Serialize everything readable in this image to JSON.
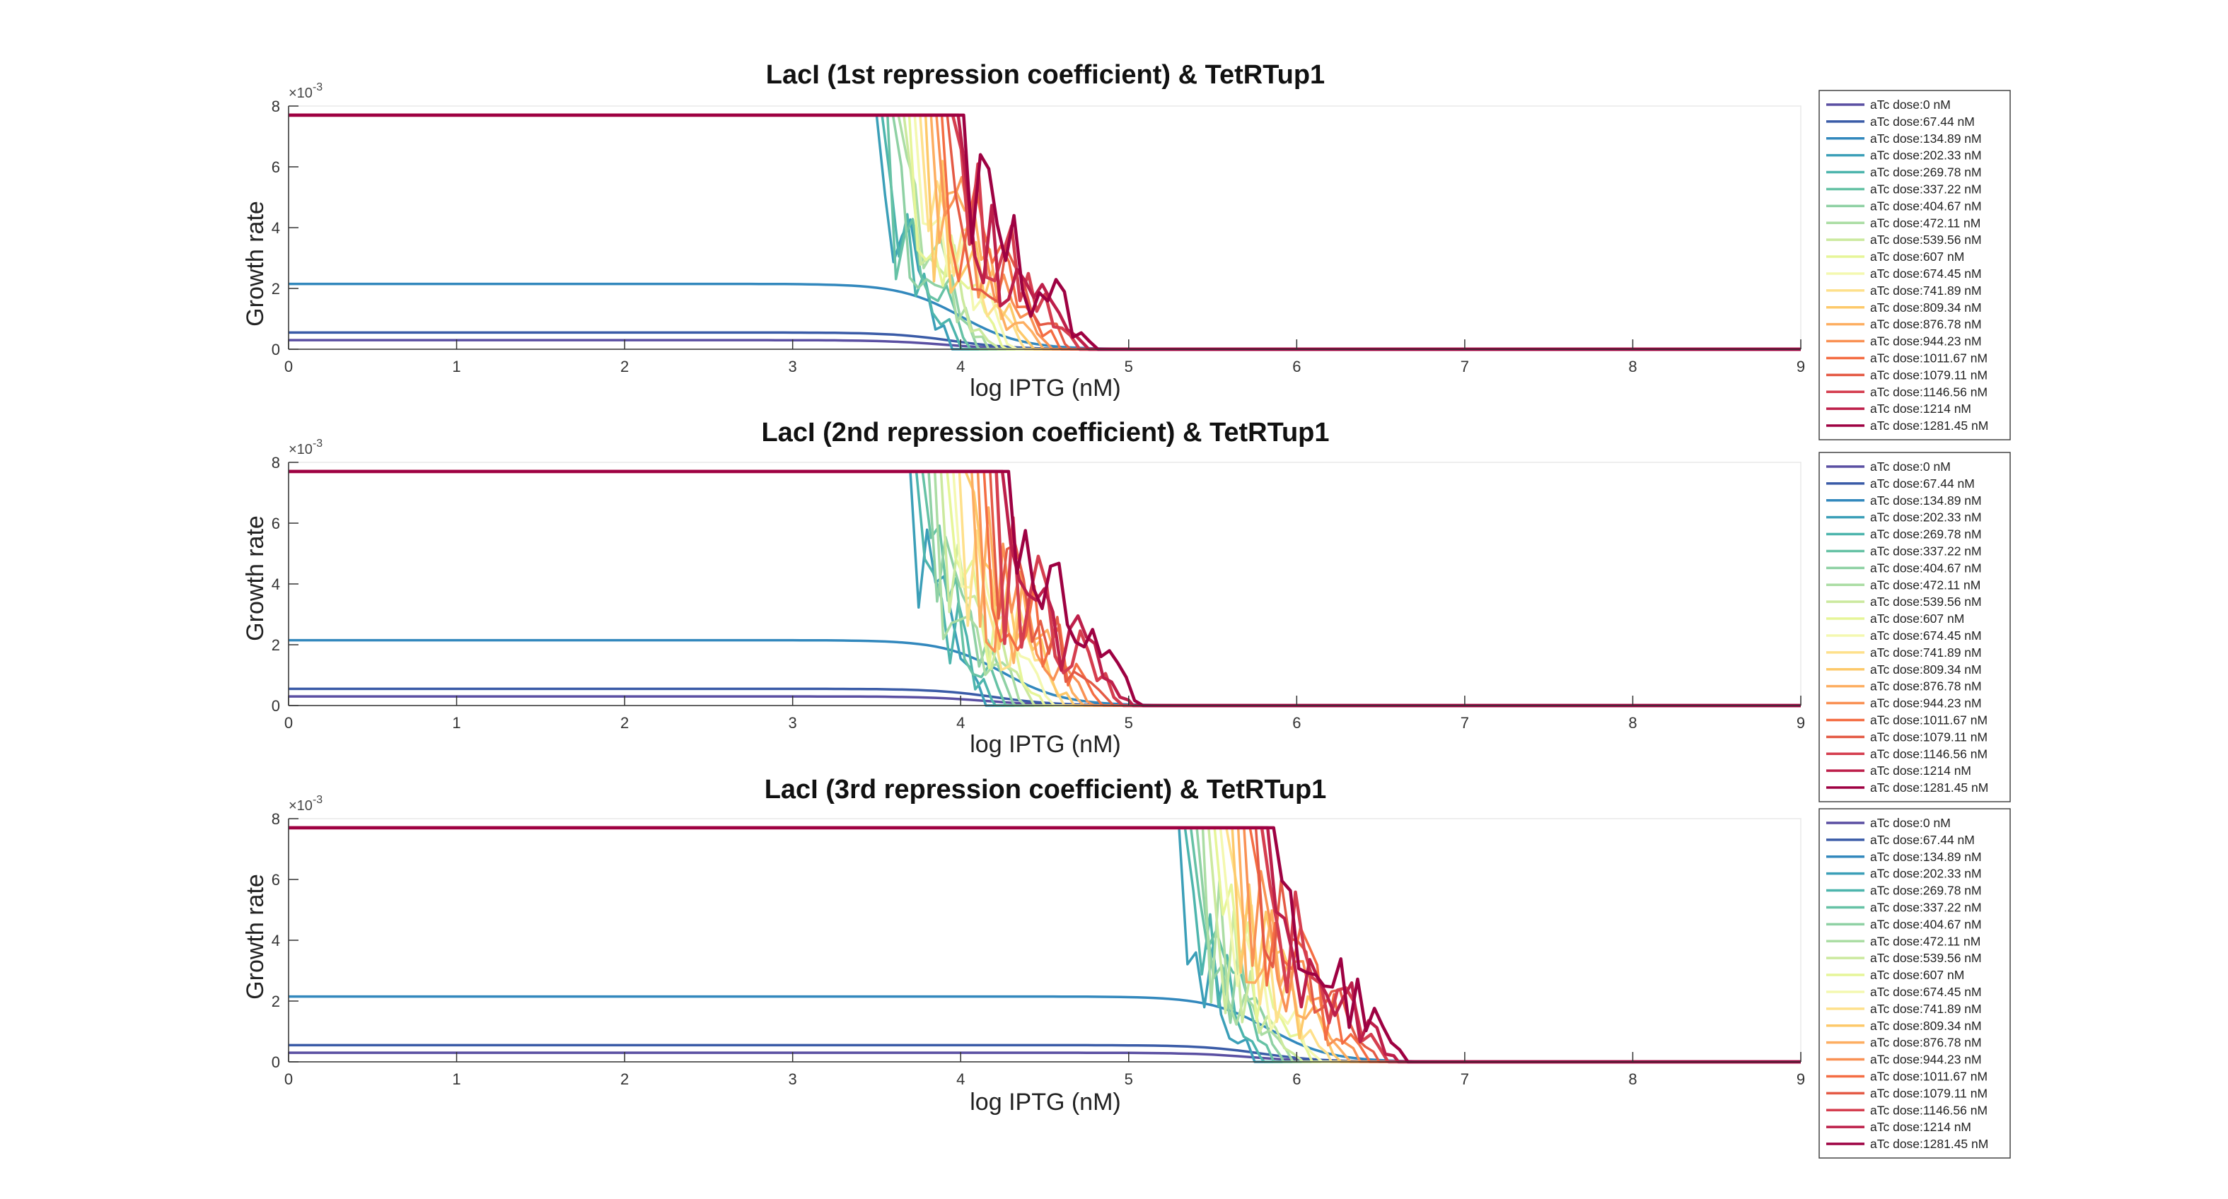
{
  "chart_data": [
    {
      "type": "line",
      "title": "LacI (1st repression coefficient) & TetRTup1",
      "xlabel": "log IPTG (nM)",
      "ylabel": "Growth rate",
      "y_exponent": "×10",
      "y_exponent_power": "-3",
      "xlim": [
        0,
        9
      ],
      "ylim": [
        0,
        8
      ],
      "xticks": [
        "0",
        "1",
        "2",
        "3",
        "4",
        "5",
        "6",
        "7",
        "8",
        "9"
      ],
      "yticks": [
        "0",
        "2",
        "4",
        "6",
        "8"
      ],
      "grid": false,
      "legend_position": "right-outside",
      "transition_start": 3.5,
      "transition_end": 4.65,
      "series": [
        {
          "name": "aTc dose:0 nM",
          "values": [
            0.3
          ]
        },
        {
          "name": "aTc dose:67.44 nM",
          "values": [
            0.55
          ]
        },
        {
          "name": "aTc dose:134.89 nM",
          "values": [
            2.15
          ]
        },
        {
          "name": "aTc dose:202.33 nM",
          "values": [
            7.7
          ]
        },
        {
          "name": "aTc dose:269.78 nM",
          "values": [
            7.7
          ]
        },
        {
          "name": "aTc dose:337.22 nM",
          "values": [
            7.7
          ]
        },
        {
          "name": "aTc dose:404.67 nM",
          "values": [
            7.7
          ]
        },
        {
          "name": "aTc dose:472.11 nM",
          "values": [
            7.7
          ]
        },
        {
          "name": "aTc dose:539.56 nM",
          "values": [
            7.7
          ]
        },
        {
          "name": "aTc dose:607 nM",
          "values": [
            7.7
          ]
        },
        {
          "name": "aTc dose:674.45 nM",
          "values": [
            7.7
          ]
        },
        {
          "name": "aTc dose:741.89 nM",
          "values": [
            7.7
          ]
        },
        {
          "name": "aTc dose:809.34 nM",
          "values": [
            7.7
          ]
        },
        {
          "name": "aTc dose:876.78 nM",
          "values": [
            7.7
          ]
        },
        {
          "name": "aTc dose:944.23 nM",
          "values": [
            7.7
          ]
        },
        {
          "name": "aTc dose:1011.67 nM",
          "values": [
            7.7
          ]
        },
        {
          "name": "aTc dose:1079.11 nM",
          "values": [
            7.7
          ]
        },
        {
          "name": "aTc dose:1146.56 nM",
          "values": [
            7.7
          ]
        },
        {
          "name": "aTc dose:1214 nM",
          "values": [
            7.7
          ]
        },
        {
          "name": "aTc dose:1281.45 nM",
          "values": [
            7.7
          ]
        }
      ]
    },
    {
      "type": "line",
      "title": "LacI (2nd repression coefficient) & TetRTup1",
      "xlabel": "log IPTG (nM)",
      "ylabel": "Growth rate",
      "y_exponent": "×10",
      "y_exponent_power": "-3",
      "xlim": [
        0,
        9
      ],
      "ylim": [
        0,
        8
      ],
      "xticks": [
        "0",
        "1",
        "2",
        "3",
        "4",
        "5",
        "6",
        "7",
        "8",
        "9"
      ],
      "yticks": [
        "0",
        "2",
        "4",
        "6",
        "8"
      ],
      "grid": false,
      "legend_position": "right-outside",
      "transition_start": 3.7,
      "transition_end": 5.0,
      "series": [
        {
          "name": "aTc dose:0 nM",
          "values": [
            0.3
          ]
        },
        {
          "name": "aTc dose:67.44 nM",
          "values": [
            0.55
          ]
        },
        {
          "name": "aTc dose:134.89 nM",
          "values": [
            2.15
          ]
        },
        {
          "name": "aTc dose:202.33 nM",
          "values": [
            7.7
          ]
        },
        {
          "name": "aTc dose:269.78 nM",
          "values": [
            7.7
          ]
        },
        {
          "name": "aTc dose:337.22 nM",
          "values": [
            7.7
          ]
        },
        {
          "name": "aTc dose:404.67 nM",
          "values": [
            7.7
          ]
        },
        {
          "name": "aTc dose:472.11 nM",
          "values": [
            7.7
          ]
        },
        {
          "name": "aTc dose:539.56 nM",
          "values": [
            7.7
          ]
        },
        {
          "name": "aTc dose:607 nM",
          "values": [
            7.7
          ]
        },
        {
          "name": "aTc dose:674.45 nM",
          "values": [
            7.7
          ]
        },
        {
          "name": "aTc dose:741.89 nM",
          "values": [
            7.7
          ]
        },
        {
          "name": "aTc dose:809.34 nM",
          "values": [
            7.7
          ]
        },
        {
          "name": "aTc dose:876.78 nM",
          "values": [
            7.7
          ]
        },
        {
          "name": "aTc dose:944.23 nM",
          "values": [
            7.7
          ]
        },
        {
          "name": "aTc dose:1011.67 nM",
          "values": [
            7.7
          ]
        },
        {
          "name": "aTc dose:1079.11 nM",
          "values": [
            7.7
          ]
        },
        {
          "name": "aTc dose:1146.56 nM",
          "values": [
            7.7
          ]
        },
        {
          "name": "aTc dose:1214 nM",
          "values": [
            7.7
          ]
        },
        {
          "name": "aTc dose:1281.45 nM",
          "values": [
            7.7
          ]
        }
      ]
    },
    {
      "type": "line",
      "title": "LacI (3rd repression coefficient) & TetRTup1",
      "xlabel": "log IPTG (nM)",
      "ylabel": "Growth rate",
      "y_exponent": "×10",
      "y_exponent_power": "-3",
      "xlim": [
        0,
        9
      ],
      "ylim": [
        0,
        8
      ],
      "xticks": [
        "0",
        "1",
        "2",
        "3",
        "4",
        "5",
        "6",
        "7",
        "8",
        "9"
      ],
      "yticks": [
        "0",
        "2",
        "4",
        "6",
        "8"
      ],
      "grid": false,
      "legend_position": "right-outside",
      "transition_start": 5.3,
      "transition_end": 6.55,
      "series": [
        {
          "name": "aTc dose:0 nM",
          "values": [
            0.3
          ]
        },
        {
          "name": "aTc dose:67.44 nM",
          "values": [
            0.55
          ]
        },
        {
          "name": "aTc dose:134.89 nM",
          "values": [
            2.15
          ]
        },
        {
          "name": "aTc dose:202.33 nM",
          "values": [
            7.7
          ]
        },
        {
          "name": "aTc dose:269.78 nM",
          "values": [
            7.7
          ]
        },
        {
          "name": "aTc dose:337.22 nM",
          "values": [
            7.7
          ]
        },
        {
          "name": "aTc dose:404.67 nM",
          "values": [
            7.7
          ]
        },
        {
          "name": "aTc dose:472.11 nM",
          "values": [
            7.7
          ]
        },
        {
          "name": "aTc dose:539.56 nM",
          "values": [
            7.7
          ]
        },
        {
          "name": "aTc dose:607 nM",
          "values": [
            7.7
          ]
        },
        {
          "name": "aTc dose:674.45 nM",
          "values": [
            7.7
          ]
        },
        {
          "name": "aTc dose:741.89 nM",
          "values": [
            7.7
          ]
        },
        {
          "name": "aTc dose:809.34 nM",
          "values": [
            7.7
          ]
        },
        {
          "name": "aTc dose:876.78 nM",
          "values": [
            7.7
          ]
        },
        {
          "name": "aTc dose:944.23 nM",
          "values": [
            7.7
          ]
        },
        {
          "name": "aTc dose:1011.67 nM",
          "values": [
            7.7
          ]
        },
        {
          "name": "aTc dose:1079.11 nM",
          "values": [
            7.7
          ]
        },
        {
          "name": "aTc dose:1146.56 nM",
          "values": [
            7.7
          ]
        },
        {
          "name": "aTc dose:1214 nM",
          "values": [
            7.7
          ]
        },
        {
          "name": "aTc dose:1281.45 nM",
          "values": [
            7.7
          ]
        }
      ]
    }
  ],
  "series_colors": [
    "#5a4fa2",
    "#3a5ba7",
    "#3288bd",
    "#3b9fb8",
    "#4db5ad",
    "#66c2a5",
    "#8fd1a4",
    "#abdda4",
    "#cbe99e",
    "#e6f598",
    "#f4f8b0",
    "#fee08b",
    "#fdc96a",
    "#fdae61",
    "#f99154",
    "#f46d43",
    "#e45a45",
    "#d53e4f",
    "#bd1f4a",
    "#9e0142"
  ]
}
